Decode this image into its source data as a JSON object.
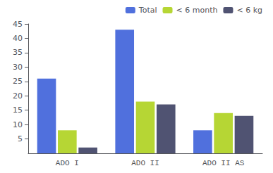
{
  "chart_data": {
    "type": "bar",
    "categories": [
      "ADO I",
      "ADO II",
      "ADO II AS"
    ],
    "series": [
      {
        "name": "Total",
        "values": [
          26,
          43,
          8
        ]
      },
      {
        "name": "< 6 month",
        "values": [
          8,
          18,
          14
        ]
      },
      {
        "name": "< 6 kg",
        "values": [
          2,
          17,
          13
        ]
      }
    ],
    "ylim": [
      0,
      45
    ],
    "yticks": [
      5,
      10,
      15,
      20,
      25,
      30,
      35,
      40,
      45
    ],
    "grid": false,
    "legend": "upper right"
  }
}
